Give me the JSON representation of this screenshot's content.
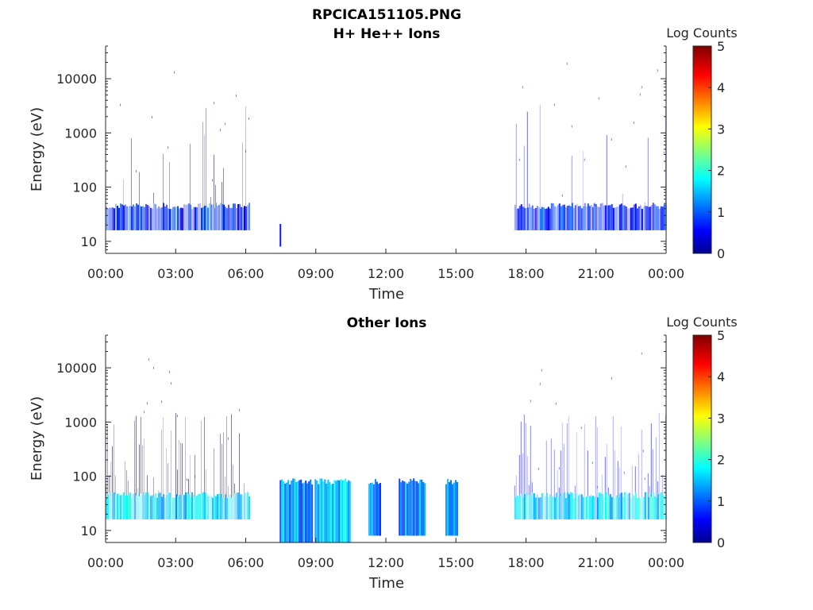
{
  "page": {
    "file_title": "RPCICA151105.PNG"
  },
  "colors": {
    "axis": "#262626",
    "background": "#ffffff",
    "colormap": "jet"
  },
  "chart_data": [
    {
      "type": "heatmap",
      "title": "H+ He++ Ions",
      "xlabel": "Time",
      "ylabel": "Energy (eV)",
      "x_tick_labels": [
        "00:00",
        "03:00",
        "06:00",
        "09:00",
        "12:00",
        "15:00",
        "18:00",
        "21:00",
        "00:00"
      ],
      "x_range_hours": [
        0,
        24
      ],
      "y_scale": "log",
      "y_tick_values": [
        10,
        100,
        1000,
        10000
      ],
      "y_tick_labels": [
        "10",
        "100",
        "1000",
        "10000"
      ],
      "ylim": [
        6,
        40000
      ],
      "colorbar": {
        "label": "Log Counts",
        "ticks": [
          "0",
          "1",
          "2",
          "3",
          "4",
          "5"
        ],
        "range": [
          0,
          5
        ]
      },
      "regions": [
        {
          "start_hour": 0.0,
          "end_hour": 6.15,
          "emin": 16,
          "emax": 45,
          "level": 0.8,
          "scatter_max_ev": 4000,
          "scatter_density": 0.1
        },
        {
          "start_hour": 7.45,
          "end_hour": 7.5,
          "emin": 8,
          "emax": 20,
          "level": 1.0,
          "scatter_max_ev": 20,
          "scatter_density": 0.0
        },
        {
          "start_hour": 17.5,
          "end_hour": 24.0,
          "emin": 16,
          "emax": 45,
          "level": 0.8,
          "scatter_max_ev": 4000,
          "scatter_density": 0.1
        }
      ]
    },
    {
      "type": "heatmap",
      "title": "Other Ions",
      "xlabel": "Time",
      "ylabel": "Energy (eV)",
      "x_tick_labels": [
        "00:00",
        "03:00",
        "06:00",
        "09:00",
        "12:00",
        "15:00",
        "18:00",
        "21:00",
        "00:00"
      ],
      "x_range_hours": [
        0,
        24
      ],
      "y_scale": "log",
      "y_tick_values": [
        10,
        100,
        1000,
        10000
      ],
      "y_tick_labels": [
        "10",
        "100",
        "1000",
        "10000"
      ],
      "ylim": [
        6,
        40000
      ],
      "colorbar": {
        "label": "Log Counts",
        "ticks": [
          "0",
          "1",
          "2",
          "3",
          "4",
          "5"
        ],
        "range": [
          0,
          5
        ]
      },
      "regions": [
        {
          "start_hour": 0.0,
          "end_hour": 6.15,
          "emin": 16,
          "emax": 45,
          "level": 1.7,
          "scatter_max_ev": 1500,
          "scatter_density": 0.35
        },
        {
          "start_hour": 7.45,
          "end_hour": 8.85,
          "emin": 6,
          "emax": 80,
          "level": 1.3,
          "scatter_max_ev": 80,
          "scatter_density": 0.0
        },
        {
          "start_hour": 8.95,
          "end_hour": 10.45,
          "emin": 6,
          "emax": 80,
          "level": 1.5,
          "scatter_max_ev": 80,
          "scatter_density": 0.0
        },
        {
          "start_hour": 11.25,
          "end_hour": 11.75,
          "emin": 8,
          "emax": 80,
          "level": 1.2,
          "scatter_max_ev": 80,
          "scatter_density": 0.0
        },
        {
          "start_hour": 12.55,
          "end_hour": 13.7,
          "emin": 8,
          "emax": 80,
          "level": 1.3,
          "scatter_max_ev": 80,
          "scatter_density": 0.0
        },
        {
          "start_hour": 14.55,
          "end_hour": 15.05,
          "emin": 8,
          "emax": 80,
          "level": 1.2,
          "scatter_max_ev": 80,
          "scatter_density": 0.0
        },
        {
          "start_hour": 17.5,
          "end_hour": 24.0,
          "emin": 16,
          "emax": 45,
          "level": 1.7,
          "scatter_max_ev": 1500,
          "scatter_density": 0.35
        }
      ]
    }
  ]
}
